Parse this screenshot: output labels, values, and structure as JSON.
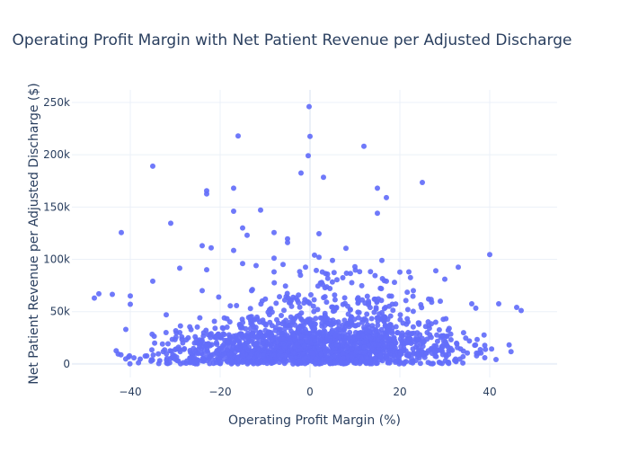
{
  "chart_data": {
    "type": "scatter",
    "title": "Operating Profit Margin with Net Patient Revenue per Adjusted Discharge",
    "xlabel": "Operating Profit Margin (%)",
    "ylabel": "Net Patient Revenue per Adjusted Discharge ($)",
    "xlim": [
      -53,
      55
    ],
    "ylim": [
      -13000,
      262000
    ],
    "xticks": [
      -40,
      -20,
      0,
      20,
      40
    ],
    "xtick_labels": [
      "−40",
      "−20",
      "0",
      "20",
      "40"
    ],
    "yticks": [
      0,
      50000,
      100000,
      150000,
      200000,
      250000
    ],
    "ytick_labels": [
      "0",
      "50k",
      "100k",
      "150k",
      "200k",
      "250k"
    ],
    "grid": true,
    "legend": "none",
    "marker_color": "#636efa",
    "outliers": [
      {
        "x": -0.2,
        "y": 246000
      },
      {
        "x": 0.0,
        "y": 217500
      },
      {
        "x": -16.0,
        "y": 218000
      },
      {
        "x": -0.4,
        "y": 199000
      },
      {
        "x": 12.0,
        "y": 208000
      },
      {
        "x": -35.0,
        "y": 189000
      },
      {
        "x": -2.0,
        "y": 182500
      },
      {
        "x": 3.0,
        "y": 178500
      },
      {
        "x": 25.0,
        "y": 173500
      },
      {
        "x": -17.0,
        "y": 168000
      },
      {
        "x": 15.0,
        "y": 168000
      },
      {
        "x": -23.0,
        "y": 165500
      },
      {
        "x": -23.0,
        "y": 162500
      },
      {
        "x": 17.0,
        "y": 159000
      },
      {
        "x": -11.0,
        "y": 147000
      },
      {
        "x": -17.0,
        "y": 146000
      },
      {
        "x": 15.0,
        "y": 144000
      },
      {
        "x": -31.0,
        "y": 134500
      },
      {
        "x": -15.0,
        "y": 130000
      },
      {
        "x": -42.0,
        "y": 125500
      },
      {
        "x": -8.0,
        "y": 125500
      },
      {
        "x": 2.0,
        "y": 124500
      },
      {
        "x": -14.0,
        "y": 123000
      },
      {
        "x": -5.0,
        "y": 119500
      },
      {
        "x": -5.0,
        "y": 116000
      },
      {
        "x": -24.0,
        "y": 113000
      },
      {
        "x": -22.0,
        "y": 111000
      },
      {
        "x": 8.0,
        "y": 110500
      },
      {
        "x": -17.0,
        "y": 108500
      },
      {
        "x": 40.0,
        "y": 104500
      },
      {
        "x": 1.0,
        "y": 104000
      },
      {
        "x": -8.0,
        "y": 101000
      },
      {
        "x": 2.0,
        "y": 102000
      },
      {
        "x": 16.0,
        "y": 99000
      },
      {
        "x": -15.0,
        "y": 96000
      },
      {
        "x": 5.0,
        "y": 99000
      },
      {
        "x": -6.0,
        "y": 95000
      },
      {
        "x": -12.0,
        "y": 94000
      },
      {
        "x": 10.0,
        "y": 93000
      },
      {
        "x": -29.0,
        "y": 91500
      },
      {
        "x": -23.0,
        "y": 90000
      },
      {
        "x": 22.0,
        "y": 88000
      },
      {
        "x": 28.0,
        "y": 89000
      },
      {
        "x": 33.0,
        "y": 92500
      },
      {
        "x": -8.0,
        "y": 88000
      },
      {
        "x": -1.0,
        "y": 92500
      },
      {
        "x": 30.0,
        "y": 81000
      },
      {
        "x": 6.0,
        "y": 80500
      },
      {
        "x": -35.0,
        "y": 79000
      },
      {
        "x": 17.0,
        "y": 79000
      },
      {
        "x": -47.0,
        "y": 67000
      },
      {
        "x": -44.0,
        "y": 66500
      },
      {
        "x": -40.0,
        "y": 65000
      },
      {
        "x": -40.0,
        "y": 57000
      },
      {
        "x": 36.0,
        "y": 57500
      },
      {
        "x": 42.0,
        "y": 57500
      },
      {
        "x": 46.0,
        "y": 54000
      },
      {
        "x": 47.0,
        "y": 51000
      },
      {
        "x": -48.0,
        "y": 63000
      },
      {
        "x": -32.0,
        "y": 47000
      },
      {
        "x": -41.0,
        "y": 33000
      },
      {
        "x": -24.0,
        "y": 70000
      },
      {
        "x": 23.0,
        "y": 70000
      },
      {
        "x": -13.0,
        "y": 70000
      },
      {
        "x": 13.0,
        "y": 60000
      },
      {
        "x": 29.0,
        "y": 60000
      }
    ],
    "cloud_rows": [
      {
        "y_min": 0,
        "y_max": 15000,
        "x_min": -49,
        "x_max": 49,
        "count": 900
      },
      {
        "y_min": 15000,
        "y_max": 30000,
        "x_min": -45,
        "x_max": 49,
        "count": 650
      },
      {
        "y_min": 30000,
        "y_max": 45000,
        "x_min": -38,
        "x_max": 46,
        "count": 220
      },
      {
        "y_min": 45000,
        "y_max": 65000,
        "x_min": -28,
        "x_max": 40,
        "count": 110
      },
      {
        "y_min": 65000,
        "y_max": 90000,
        "x_min": -20,
        "x_max": 32,
        "count": 40
      }
    ],
    "random_seed": 7
  }
}
